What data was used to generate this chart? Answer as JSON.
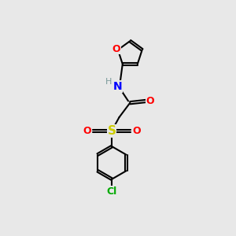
{
  "bg_color": "#e8e8e8",
  "atom_colors": {
    "C": "#000000",
    "H": "#7a9a9a",
    "N": "#0000ff",
    "O": "#ff0000",
    "S": "#cccc00",
    "Cl": "#00aa00"
  },
  "bond_color": "#000000",
  "bond_width": 1.5,
  "figsize": [
    3.0,
    3.0
  ],
  "dpi": 100,
  "xlim": [
    0,
    10
  ],
  "ylim": [
    0,
    10
  ]
}
